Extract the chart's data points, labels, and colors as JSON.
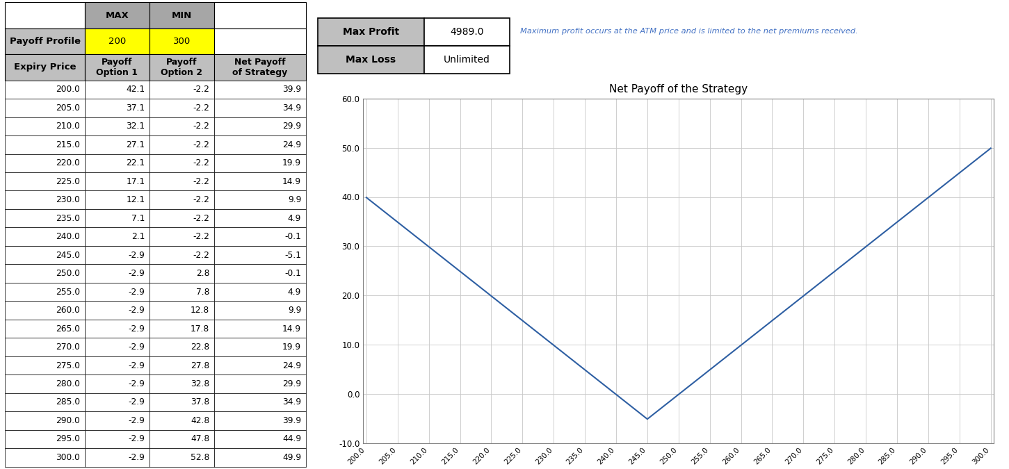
{
  "expiry_prices": [
    200.0,
    205.0,
    210.0,
    215.0,
    220.0,
    225.0,
    230.0,
    235.0,
    240.0,
    245.0,
    250.0,
    255.0,
    260.0,
    265.0,
    270.0,
    275.0,
    280.0,
    285.0,
    290.0,
    295.0,
    300.0
  ],
  "payoff_opt1": [
    42.1,
    37.1,
    32.1,
    27.1,
    22.1,
    17.1,
    12.1,
    7.1,
    2.1,
    -2.9,
    -2.9,
    -2.9,
    -2.9,
    -2.9,
    -2.9,
    -2.9,
    -2.9,
    -2.9,
    -2.9,
    -2.9,
    -2.9
  ],
  "payoff_opt2": [
    -2.2,
    -2.2,
    -2.2,
    -2.2,
    -2.2,
    -2.2,
    -2.2,
    -2.2,
    -2.2,
    -2.2,
    2.8,
    7.8,
    12.8,
    17.8,
    22.8,
    27.8,
    32.8,
    37.8,
    42.8,
    47.8,
    52.8
  ],
  "net_payoff": [
    39.9,
    34.9,
    29.9,
    24.9,
    19.9,
    14.9,
    9.9,
    4.9,
    -0.1,
    -5.1,
    -0.1,
    4.9,
    9.9,
    14.9,
    19.9,
    24.9,
    29.9,
    34.9,
    39.9,
    44.9,
    49.9
  ],
  "max_val": "200",
  "min_val": "300",
  "max_profit": "4989.0",
  "max_loss": "Unlimited",
  "chart_title": "Net Payoff of the Strategy",
  "info_text": "Maximum profit occurs at the ATM price and is limited to the net premiums received.",
  "header_bg": "#a6a6a6",
  "payoff_profile_bg": "#ffff00",
  "col_header_bg": "#bfbfbf",
  "line_color": "#2e5fa3",
  "text_color_blue": "#4472c4",
  "ylim_chart": [
    -10.0,
    60.0
  ],
  "yticks_chart": [
    -10.0,
    0.0,
    10.0,
    20.0,
    30.0,
    40.0,
    50.0,
    60.0
  ],
  "fig_width": 14.51,
  "fig_height": 6.75,
  "fig_dpi": 100
}
